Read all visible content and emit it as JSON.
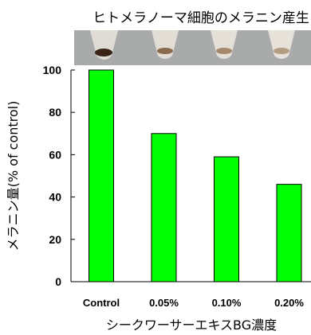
{
  "chart_data": {
    "type": "bar",
    "title": "ヒトメラノーマ細胞のメラニン産生",
    "categories": [
      "Control",
      "0.05%",
      "0.10%",
      "0.20%"
    ],
    "values": [
      100,
      70,
      59,
      46
    ],
    "xlabel": "シークワーサーエキスBG濃度",
    "ylabel": "メラニン量(% of control)",
    "ylim": [
      0,
      100
    ],
    "yticks": [
      0,
      20,
      40,
      60,
      80,
      100
    ],
    "bar_color": "#00ff00",
    "bar_outline": "#000000",
    "grid": false,
    "legend": "none"
  },
  "photo": {
    "description": "test tubes",
    "tube_count": 4
  }
}
